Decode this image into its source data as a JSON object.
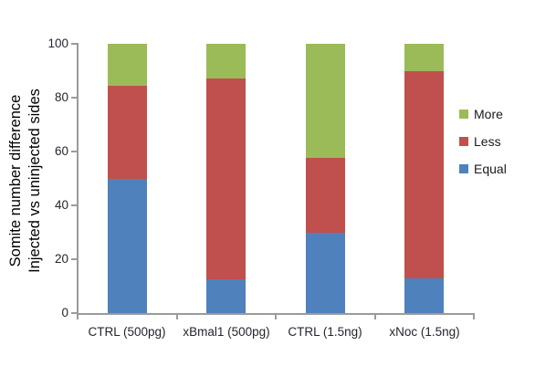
{
  "figure": {
    "ylabel_line1": "Somite number difference",
    "ylabel_line2": "Injected vs uninjected sides"
  },
  "chart_data": {
    "type": "bar",
    "stacked": true,
    "title": "",
    "xlabel": "",
    "ylabel": "Somite number difference Injected vs uninjected sides",
    "categories": [
      "CTRL (500pg)",
      "xBmal1 (500pg)",
      "CTRL (1.5ng)",
      "xNoc (1.5ng)"
    ],
    "series": [
      {
        "name": "Equal",
        "color": "#4F81BD",
        "values": [
          50,
          12.5,
          30,
          13
        ]
      },
      {
        "name": "Less",
        "color": "#C0504D",
        "values": [
          34.5,
          74.5,
          27.5,
          77
        ]
      },
      {
        "name": "More",
        "color": "#9BBB59",
        "values": [
          15.5,
          13,
          42.5,
          10
        ]
      }
    ],
    "legend": [
      "More",
      "Less",
      "Equal"
    ],
    "legend_position": "right",
    "ylim": [
      0,
      100
    ],
    "yticks": [
      0,
      20,
      40,
      60,
      80,
      100
    ],
    "grid": false
  },
  "colors": {
    "axis": "#9b9b9b",
    "tick_text": "#24242e",
    "title_text": "#000000"
  }
}
